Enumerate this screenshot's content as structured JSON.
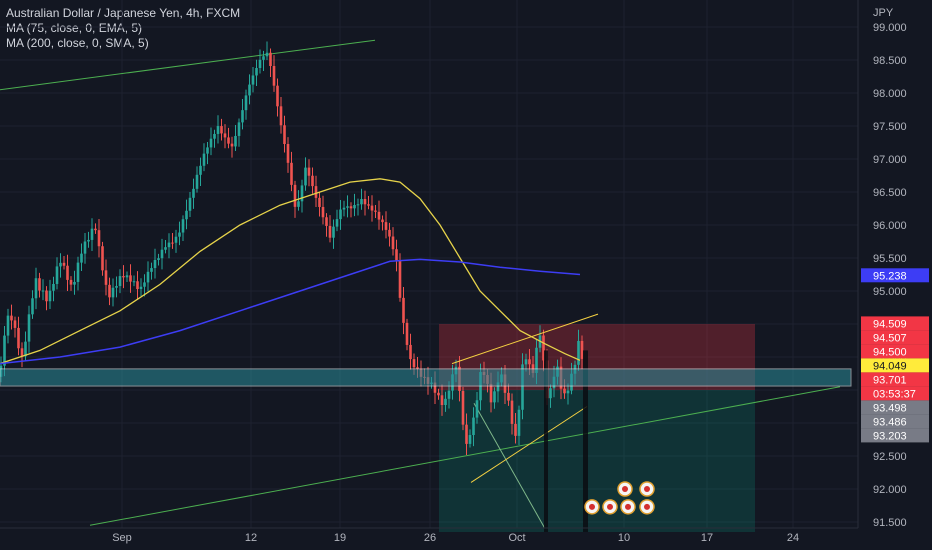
{
  "header": {
    "title": "Australian Dollar / Japanese Yen, 4h, FXCM",
    "indicators": [
      "MA (75, close, 0, EMA, 5)",
      "MA (200, close, 0, SMA, 5)"
    ]
  },
  "currency": "JPY",
  "colors": {
    "background": "#131722",
    "up": "#26a69a",
    "down": "#ef5350",
    "ema75": "#e6d34a",
    "sma200": "#3d3df5",
    "zone": "#2a8c99",
    "trendline": "#4caf50",
    "wedge": "#f5d142"
  },
  "chart_data": {
    "type": "candlestick",
    "y_ticks": [
      "99.000",
      "98.500",
      "98.000",
      "97.500",
      "97.000",
      "96.500",
      "96.000",
      "95.500",
      "95.000",
      "94.500",
      "94.000",
      "93.500",
      "93.000",
      "92.500",
      "92.000",
      "91.500"
    ],
    "x_ticks": [
      "Sep",
      "12",
      "19",
      "26",
      "Oct",
      "10",
      "17",
      "24"
    ],
    "ylim": [
      91.45,
      99.15
    ],
    "ema75_path": [
      [
        0,
        93.9
      ],
      [
        40,
        94.1
      ],
      [
        80,
        94.4
      ],
      [
        120,
        94.7
      ],
      [
        160,
        95.1
      ],
      [
        200,
        95.6
      ],
      [
        240,
        96.0
      ],
      [
        280,
        96.3
      ],
      [
        320,
        96.5
      ],
      [
        350,
        96.65
      ],
      [
        380,
        96.7
      ],
      [
        400,
        96.65
      ],
      [
        420,
        96.4
      ],
      [
        440,
        96.0
      ],
      [
        460,
        95.5
      ],
      [
        480,
        95.0
      ],
      [
        500,
        94.7
      ],
      [
        520,
        94.4
      ],
      [
        545,
        94.2
      ],
      [
        565,
        94.05
      ],
      [
        580,
        93.95
      ]
    ],
    "sma200_path": [
      [
        0,
        93.9
      ],
      [
        60,
        94.0
      ],
      [
        120,
        94.15
      ],
      [
        180,
        94.4
      ],
      [
        240,
        94.7
      ],
      [
        300,
        95.0
      ],
      [
        350,
        95.25
      ],
      [
        390,
        95.45
      ],
      [
        420,
        95.48
      ],
      [
        460,
        95.44
      ],
      [
        500,
        95.36
      ],
      [
        540,
        95.3
      ],
      [
        580,
        95.25
      ]
    ],
    "price_labels": [
      {
        "text": "95.238",
        "value": 95.238,
        "bg": "#3d3df5"
      },
      {
        "text": "94.509",
        "value": 94.509,
        "bg": "#f23645"
      },
      {
        "text": "94.507",
        "value": 94.507,
        "bg": "#f23645"
      },
      {
        "text": "94.500",
        "value": 94.5,
        "bg": "#f23645"
      },
      {
        "text": "94.049",
        "value": 94.049,
        "bg": "#ffeb3b"
      },
      {
        "text": "93.701",
        "value": 93.701,
        "bg": "#f23645"
      },
      {
        "text": "03:53:37",
        "value": 93.54,
        "bg": "#f23645"
      },
      {
        "text": "93.498",
        "value": 93.498,
        "bg": "#787b86"
      },
      {
        "text": "93.486",
        "value": 93.486,
        "bg": "#787b86"
      },
      {
        "text": "93.203",
        "value": 93.203,
        "bg": "#787b86"
      }
    ]
  }
}
